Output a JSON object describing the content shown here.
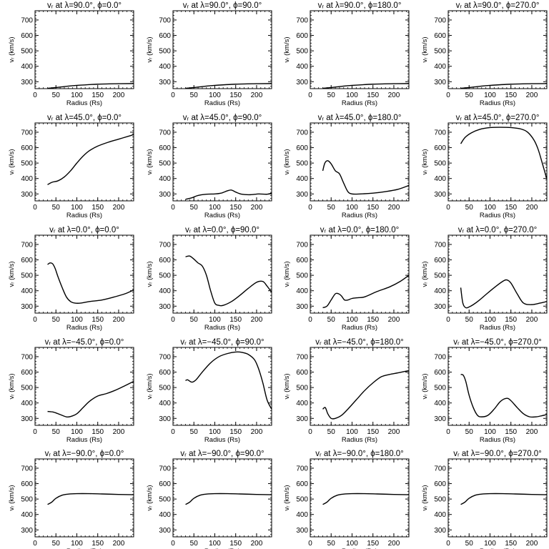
{
  "x_axis_label": "Radius (Rs)",
  "y_axis_label": "vᵣ (km/s)",
  "x_ticks": [
    "0",
    "50",
    "100",
    "150",
    "200"
  ],
  "y_ticks": [
    "300",
    "400",
    "500",
    "600",
    "700"
  ],
  "chart_data": [
    {
      "type": "line",
      "title": "vᵣ at λ=90.0°, ϕ=0.0°",
      "xlabel": "Radius (Rs)",
      "ylabel": "vᵣ (km/s)",
      "xlim": [
        0,
        236
      ],
      "ylim": [
        255,
        760
      ],
      "x": [
        30,
        50,
        75,
        100,
        150,
        200,
        236
      ],
      "y": [
        257,
        262,
        270,
        276,
        284,
        287,
        288
      ]
    },
    {
      "type": "line",
      "title": "vᵣ at λ=90.0°, ϕ=90.0°",
      "xlabel": "Radius (Rs)",
      "ylabel": "vᵣ (km/s)",
      "xlim": [
        0,
        236
      ],
      "ylim": [
        255,
        760
      ],
      "x": [
        30,
        50,
        75,
        100,
        150,
        200,
        236
      ],
      "y": [
        257,
        262,
        270,
        276,
        284,
        287,
        288
      ]
    },
    {
      "type": "line",
      "title": "vᵣ at λ=90.0°, ϕ=180.0°",
      "xlabel": "Radius (Rs)",
      "ylabel": "vᵣ (km/s)",
      "xlim": [
        0,
        236
      ],
      "ylim": [
        255,
        760
      ],
      "x": [
        30,
        50,
        75,
        100,
        150,
        200,
        236
      ],
      "y": [
        257,
        262,
        270,
        276,
        284,
        287,
        288
      ]
    },
    {
      "type": "line",
      "title": "vᵣ at λ=90.0°, ϕ=270.0°",
      "xlabel": "Radius (Rs)",
      "ylabel": "vᵣ (km/s)",
      "xlim": [
        0,
        236
      ],
      "ylim": [
        255,
        760
      ],
      "x": [
        30,
        50,
        75,
        100,
        150,
        200,
        236
      ],
      "y": [
        257,
        262,
        270,
        276,
        284,
        287,
        288
      ]
    },
    {
      "type": "line",
      "title": "vᵣ at λ=45.0°, ϕ=0.0°",
      "xlabel": "Radius (Rs)",
      "ylabel": "vᵣ (km/s)",
      "xlim": [
        0,
        236
      ],
      "ylim": [
        255,
        760
      ],
      "x": [
        30,
        40,
        55,
        70,
        85,
        100,
        115,
        130,
        150,
        175,
        200,
        225,
        236
      ],
      "y": [
        360,
        375,
        385,
        410,
        450,
        500,
        545,
        580,
        610,
        635,
        655,
        675,
        685
      ]
    },
    {
      "type": "line",
      "title": "vᵣ at λ=45.0°, ϕ=90.0°",
      "xlabel": "Radius (Rs)",
      "ylabel": "vᵣ (km/s)",
      "xlim": [
        0,
        236
      ],
      "ylim": [
        255,
        760
      ],
      "x": [
        30,
        45,
        60,
        80,
        100,
        115,
        130,
        140,
        150,
        165,
        185,
        205,
        225,
        236
      ],
      "y": [
        265,
        275,
        290,
        298,
        300,
        305,
        320,
        325,
        312,
        298,
        295,
        300,
        298,
        305
      ]
    },
    {
      "type": "line",
      "title": "vᵣ at λ=45.0°, ϕ=180.0°",
      "xlabel": "Radius (Rs)",
      "ylabel": "vᵣ (km/s)",
      "xlim": [
        0,
        236
      ],
      "ylim": [
        255,
        760
      ],
      "x": [
        30,
        35,
        42,
        50,
        60,
        70,
        80,
        90,
        100,
        120,
        150,
        180,
        210,
        236
      ],
      "y": [
        450,
        500,
        515,
        495,
        450,
        430,
        370,
        315,
        300,
        300,
        305,
        315,
        330,
        355
      ]
    },
    {
      "type": "line",
      "title": "vᵣ at λ=45.0°, ϕ=270.0°",
      "xlabel": "Radius (Rs)",
      "ylabel": "vᵣ (km/s)",
      "xlim": [
        0,
        236
      ],
      "ylim": [
        255,
        760
      ],
      "x": [
        30,
        40,
        55,
        75,
        100,
        125,
        150,
        175,
        190,
        205,
        215,
        225,
        236
      ],
      "y": [
        625,
        665,
        695,
        718,
        730,
        732,
        730,
        720,
        700,
        650,
        590,
        500,
        395
      ]
    },
    {
      "type": "line",
      "title": "vᵣ at λ=0.0°, ϕ=0.0°",
      "xlabel": "Radius (Rs)",
      "ylabel": "vᵣ (km/s)",
      "xlim": [
        0,
        236
      ],
      "ylim": [
        255,
        760
      ],
      "x": [
        30,
        36,
        42,
        48,
        55,
        65,
        75,
        85,
        95,
        110,
        130,
        160,
        190,
        215,
        236
      ],
      "y": [
        570,
        580,
        575,
        545,
        490,
        420,
        360,
        330,
        320,
        320,
        330,
        340,
        360,
        380,
        405
      ]
    },
    {
      "type": "line",
      "title": "vᵣ at λ=0.0°, ϕ=90.0°",
      "xlabel": "Radius (Rs)",
      "ylabel": "vᵣ (km/s)",
      "xlim": [
        0,
        236
      ],
      "ylim": [
        255,
        760
      ],
      "x": [
        30,
        40,
        50,
        60,
        70,
        80,
        90,
        100,
        110,
        120,
        140,
        160,
        180,
        200,
        215,
        225,
        236
      ],
      "y": [
        620,
        625,
        605,
        580,
        560,
        500,
        400,
        320,
        305,
        305,
        330,
        370,
        415,
        455,
        460,
        430,
        390
      ]
    },
    {
      "type": "line",
      "title": "vᵣ at λ=0.0°, ϕ=180.0°",
      "xlabel": "Radius (Rs)",
      "ylabel": "vᵣ (km/s)",
      "xlim": [
        0,
        236
      ],
      "ylim": [
        255,
        760
      ],
      "x": [
        30,
        40,
        50,
        60,
        68,
        75,
        82,
        90,
        100,
        115,
        130,
        160,
        190,
        215,
        236
      ],
      "y": [
        290,
        300,
        340,
        380,
        380,
        365,
        340,
        340,
        350,
        355,
        360,
        395,
        425,
        460,
        500
      ]
    },
    {
      "type": "line",
      "title": "vᵣ at λ=0.0°, ϕ=270.0°",
      "xlabel": "Radius (Rs)",
      "ylabel": "vᵣ (km/s)",
      "xlim": [
        0,
        236
      ],
      "ylim": [
        255,
        760
      ],
      "x": [
        30,
        35,
        42,
        50,
        60,
        75,
        90,
        110,
        130,
        140,
        150,
        165,
        180,
        200,
        220,
        236
      ],
      "y": [
        420,
        320,
        290,
        295,
        310,
        340,
        375,
        420,
        460,
        470,
        450,
        380,
        320,
        310,
        320,
        330
      ]
    },
    {
      "type": "line",
      "title": "vᵣ at λ=−45.0°, ϕ=0.0°",
      "xlabel": "Radius (Rs)",
      "ylabel": "vᵣ (km/s)",
      "xlim": [
        0,
        236
      ],
      "ylim": [
        255,
        760
      ],
      "x": [
        30,
        45,
        60,
        75,
        85,
        100,
        115,
        130,
        150,
        170,
        190,
        210,
        236
      ],
      "y": [
        345,
        340,
        325,
        310,
        312,
        330,
        370,
        410,
        445,
        460,
        480,
        505,
        540
      ]
    },
    {
      "type": "line",
      "title": "vᵣ at λ=−45.0°, ϕ=90.0°",
      "xlabel": "Radius (Rs)",
      "ylabel": "vᵣ (km/s)",
      "xlim": [
        0,
        236
      ],
      "ylim": [
        255,
        760
      ],
      "x": [
        30,
        35,
        45,
        55,
        70,
        90,
        110,
        130,
        150,
        165,
        180,
        195,
        205,
        215,
        225,
        236
      ],
      "y": [
        545,
        550,
        535,
        550,
        600,
        660,
        700,
        720,
        730,
        728,
        715,
        680,
        620,
        530,
        420,
        360
      ]
    },
    {
      "type": "line",
      "title": "vᵣ at λ=−45.0°, ϕ=180.0°",
      "xlabel": "Radius (Rs)",
      "ylabel": "vᵣ (km/s)",
      "xlim": [
        0,
        236
      ],
      "ylim": [
        255,
        760
      ],
      "x": [
        30,
        36,
        42,
        50,
        60,
        75,
        90,
        110,
        130,
        150,
        170,
        190,
        210,
        236
      ],
      "y": [
        360,
        370,
        330,
        300,
        300,
        320,
        360,
        420,
        480,
        530,
        570,
        585,
        595,
        610
      ]
    },
    {
      "type": "line",
      "title": "vᵣ at λ=−45.0°, ϕ=270.0°",
      "xlabel": "Radius (Rs)",
      "ylabel": "vᵣ (km/s)",
      "xlim": [
        0,
        236
      ],
      "ylim": [
        255,
        760
      ],
      "x": [
        30,
        36,
        42,
        50,
        60,
        70,
        80,
        95,
        110,
        125,
        140,
        150,
        165,
        180,
        195,
        210,
        225,
        236
      ],
      "y": [
        585,
        580,
        540,
        450,
        370,
        320,
        310,
        320,
        360,
        410,
        430,
        415,
        370,
        330,
        310,
        310,
        318,
        325
      ]
    },
    {
      "type": "line",
      "title": "vᵣ at λ=−90.0°, ϕ=0.0°",
      "xlabel": "Radius (Rs)",
      "ylabel": "vᵣ (km/s)",
      "xlim": [
        0,
        236
      ],
      "ylim": [
        255,
        760
      ],
      "x": [
        30,
        40,
        50,
        65,
        80,
        100,
        130,
        160,
        200,
        236
      ],
      "y": [
        465,
        480,
        505,
        525,
        532,
        535,
        535,
        533,
        530,
        528
      ]
    },
    {
      "type": "line",
      "title": "vᵣ at λ=−90.0°, ϕ=90.0°",
      "xlabel": "Radius (Rs)",
      "ylabel": "vᵣ (km/s)",
      "xlim": [
        0,
        236
      ],
      "ylim": [
        255,
        760
      ],
      "x": [
        30,
        40,
        50,
        65,
        80,
        100,
        130,
        160,
        200,
        236
      ],
      "y": [
        465,
        480,
        505,
        525,
        532,
        535,
        535,
        533,
        530,
        528
      ]
    },
    {
      "type": "line",
      "title": "vᵣ at λ=−90.0°, ϕ=180.0°",
      "xlabel": "Radius (Rs)",
      "ylabel": "vᵣ (km/s)",
      "xlim": [
        0,
        236
      ],
      "ylim": [
        255,
        760
      ],
      "x": [
        30,
        40,
        50,
        65,
        80,
        100,
        130,
        160,
        200,
        236
      ],
      "y": [
        465,
        480,
        505,
        525,
        532,
        535,
        535,
        533,
        530,
        528
      ]
    },
    {
      "type": "line",
      "title": "vᵣ at λ=−90.0°, ϕ=270.0°",
      "xlabel": "Radius (Rs)",
      "ylabel": "vᵣ (km/s)",
      "xlim": [
        0,
        236
      ],
      "ylim": [
        255,
        760
      ],
      "x": [
        30,
        40,
        50,
        65,
        80,
        100,
        130,
        160,
        200,
        236
      ],
      "y": [
        465,
        480,
        505,
        525,
        532,
        535,
        535,
        533,
        530,
        528
      ]
    }
  ]
}
